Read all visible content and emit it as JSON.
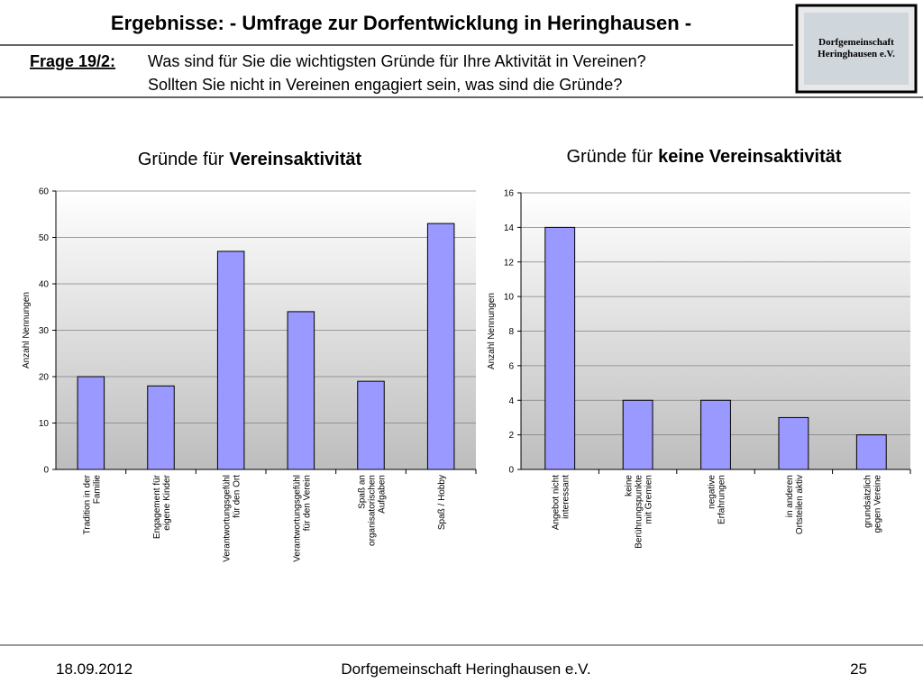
{
  "header": {
    "title": "Ergebnisse: - Umfrage zur Dorfentwicklung in Heringhausen -",
    "question_label": "Frage 19/2:",
    "question_lines": [
      "Was sind für Sie die wichtigsten Gründe für Ihre Aktivität in Vereinen?",
      "Sollten Sie nicht in Vereinen engagiert sein, was sind die Gründe?"
    ],
    "logo_lines": [
      "Dorfgemeinschaft",
      "Heringhausen e.V."
    ]
  },
  "chart_data": [
    {
      "type": "bar",
      "title": [
        "Gründe für",
        "Vereinsaktivität"
      ],
      "y_label": "Anzahl Nennungen",
      "color": "#9999ff",
      "categories": [
        [
          "Tradition in der",
          "Familie"
        ],
        [
          "Engagement für",
          "eigene Kinder"
        ],
        [
          "Verantwortungsgefühl",
          "für den Ort"
        ],
        [
          "Verantwortungsgefühl",
          "für den Verein"
        ],
        [
          "Spaß an",
          "organisatorischen",
          "Aufgaben"
        ],
        [
          "Spaß / Hobby"
        ]
      ],
      "values": [
        20,
        18,
        47,
        34,
        19,
        53
      ],
      "ylim": [
        0,
        60
      ],
      "yticks": [
        0,
        10,
        20,
        30,
        40,
        50,
        60
      ],
      "grid": true
    },
    {
      "type": "bar",
      "title": [
        "Gründe für",
        "keine Vereinsaktivität"
      ],
      "y_label": "Anzahl Nennungen",
      "color": "#9999ff",
      "categories": [
        [
          "Angebot nicht",
          "interessant"
        ],
        [
          "keine",
          "Berührungspunkte",
          "mit Gremien"
        ],
        [
          "negative",
          "Erfahrungen"
        ],
        [
          "in anderen",
          "Ortsteilen aktiv"
        ],
        [
          "grundsätzlich",
          "gegen Vereine"
        ]
      ],
      "values": [
        14,
        4,
        4,
        3,
        2
      ],
      "ylim": [
        0,
        16
      ],
      "yticks": [
        0,
        2,
        4,
        6,
        8,
        10,
        12,
        14,
        16
      ],
      "grid": true
    }
  ],
  "footer": {
    "date": "18.09.2012",
    "organization": "Dorfgemeinschaft Heringhausen e.V.",
    "page": "25"
  }
}
